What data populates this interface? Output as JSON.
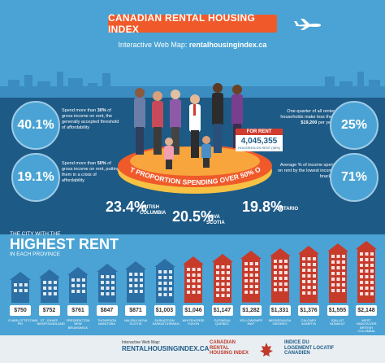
{
  "header": {
    "title": "CANADIAN RENTAL HOUSING INDEX",
    "subtitle_prefix": "Interactive Web Map: ",
    "subtitle_link": "rentalhousingindex.ca"
  },
  "stats": {
    "left_top": {
      "value": "40.1%",
      "text_a": "Spend more than ",
      "bold": "30%",
      "text_b": " of gross income on rent, the generally accepted threshold of affordability"
    },
    "left_bottom": {
      "value": "19.1%",
      "text_a": "Spend more than ",
      "bold": "50%",
      "text_b": " of gross income on rent, putting them in a crisis of affordability"
    },
    "right_top": {
      "value": "25%",
      "text_a": "One-quarter of all renter households make less than ",
      "bold": "$19,200",
      "text_b": " per year"
    },
    "right_bottom": {
      "value": "71%",
      "text": "Average % of income spent on rent by the lowest income bracket"
    }
  },
  "sign": {
    "head": "FOR RENT",
    "number": "4,045,355",
    "label": "HOUSEHOLDS RENT (38%)"
  },
  "arc_text": "HIGHEST PROPORTION SPENDING OVER 50% ON RENT",
  "provinces": [
    {
      "pct": "23.4%",
      "name_line1": "BRITISH",
      "name_line2": "COLUMBIA"
    },
    {
      "pct": "20.5%",
      "name_line1": "NOVA",
      "name_line2": "SCOTIA"
    },
    {
      "pct": "19.8%",
      "name_line1": "ONTARIO",
      "name_line2": ""
    }
  ],
  "highest_rent": {
    "line1": "THE CITY WITH THE",
    "big": "HIGHEST RENT",
    "line2": "IN EACH PROVINCE"
  },
  "cities": [
    {
      "rent": "$750",
      "name": "CHARLOTTETOWN PEI"
    },
    {
      "rent": "$752",
      "name": "ST. JOHN'S NEWFOUNDLAND"
    },
    {
      "rent": "$761",
      "name": "FREDERICTON NEW BRUNSWICK"
    },
    {
      "rent": "$847",
      "name": "THOMPSON MANITOBA"
    },
    {
      "rent": "$871",
      "name": "HALIFAX NOVA SCOTIA"
    },
    {
      "rent": "$1,003",
      "name": "SASKATOON SASKATCHEWAN"
    },
    {
      "rent": "$1,046",
      "name": "WHITEHORSE YUKON"
    },
    {
      "rent": "$1,147",
      "name": "GATINEAU QUEBEC"
    },
    {
      "rent": "$1,282",
      "name": "YELLOWKNIFE NWT"
    },
    {
      "rent": "$1,331",
      "name": "MISSISSAUGA ONTARIO"
    },
    {
      "rent": "$1,376",
      "name": "CALGARY ALBERTA"
    },
    {
      "rent": "$1,555",
      "name": "IQALUIT NUNAVUT"
    },
    {
      "rent": "$2,148",
      "name": "WEST VANCOUVER BRITISH COLUMBIA"
    }
  ],
  "footer": {
    "small": "Interactive Web Map:",
    "link": "RENTALHOUSINGINDEX.CA",
    "logo1_line1": "CANADIAN",
    "logo1_line2": "RENTAL",
    "logo1_line3": "HOUSING INDEX",
    "logo2_line1": "INDICE DU",
    "logo2_line2": "LOGEMENT LOCATIF",
    "logo2_line3": "CANADIEN"
  },
  "colors": {
    "orange": "#f05a2b",
    "navy": "#1e5a86",
    "sky": "#4aa3d4",
    "red_house": "#c73b2b",
    "blue_house": "#2c6fa5"
  }
}
